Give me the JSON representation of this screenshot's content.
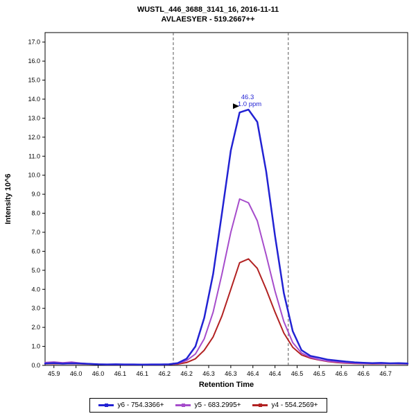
{
  "title": {
    "line1": "WUSTL_446_3688_3141_16, 2016-11-11",
    "line2": "AVLAESYER - 519.2667++"
  },
  "axes": {
    "x_label": "Retention Time",
    "y_label": "Intensity 10^6",
    "x_ticks": {
      "values": [
        45.9,
        45.95,
        46.0,
        46.05,
        46.1,
        46.15,
        46.2,
        46.25,
        46.3,
        46.35,
        46.4,
        46.45,
        46.5,
        46.55,
        46.6,
        46.65
      ],
      "labels": [
        "45.9",
        "46.0",
        "46.0",
        "46.1",
        "46.1",
        "46.2",
        "46.2",
        "46.3",
        "46.3",
        "46.4",
        "46.4",
        "46.5",
        "46.5",
        "46.6",
        "46.6",
        "46.7"
      ]
    },
    "y_ticks": {
      "values": [
        0,
        1,
        2,
        3,
        4,
        5,
        6,
        7,
        8,
        9,
        10,
        11,
        12,
        13,
        14,
        15,
        16,
        17
      ],
      "labels": [
        "0.0",
        "1.0",
        "2.0",
        "3.0",
        "4.0",
        "5.0",
        "6.0",
        "7.0",
        "8.0",
        "9.0",
        "10.0",
        "11.0",
        "12.0",
        "13.0",
        "14.0",
        "15.0",
        "16.0",
        "17.0"
      ]
    }
  },
  "chart_data": {
    "type": "line",
    "title": "WUSTL_446_3688_3141_16, 2016-11-11 / AVLAESYER - 519.2667++",
    "xlabel": "Retention Time",
    "ylabel": "Intensity 10^6",
    "xlim": [
      45.88,
      46.7
    ],
    "ylim": [
      0,
      17.5
    ],
    "grid": false,
    "legend_position": "bottom",
    "x": [
      45.88,
      45.9,
      45.92,
      45.94,
      45.96,
      45.98,
      46.0,
      46.02,
      46.04,
      46.06,
      46.08,
      46.1,
      46.12,
      46.14,
      46.16,
      46.18,
      46.2,
      46.22,
      46.24,
      46.26,
      46.28,
      46.3,
      46.32,
      46.34,
      46.36,
      46.38,
      46.4,
      46.42,
      46.44,
      46.46,
      46.48,
      46.5,
      46.52,
      46.54,
      46.56,
      46.58,
      46.6,
      46.62,
      46.64,
      46.66,
      46.68,
      46.7
    ],
    "series": [
      {
        "id": "y6",
        "name": "y6 - 754.3366+",
        "color": "#2222D3",
        "values": [
          0.1,
          0.12,
          0.09,
          0.11,
          0.1,
          0.08,
          0.06,
          0.05,
          0.06,
          0.05,
          0.05,
          0.04,
          0.05,
          0.05,
          0.06,
          0.12,
          0.35,
          1.0,
          2.5,
          4.8,
          8.0,
          11.3,
          13.3,
          13.45,
          12.8,
          10.2,
          6.8,
          3.8,
          1.8,
          0.8,
          0.5,
          0.4,
          0.3,
          0.25,
          0.2,
          0.16,
          0.14,
          0.12,
          0.13,
          0.11,
          0.12,
          0.1
        ]
      },
      {
        "id": "y5",
        "name": "y5 - 683.2995+",
        "color": "#A64CCB",
        "values": [
          0.15,
          0.18,
          0.14,
          0.17,
          0.12,
          0.08,
          0.06,
          0.05,
          0.05,
          0.04,
          0.05,
          0.04,
          0.05,
          0.04,
          0.05,
          0.1,
          0.25,
          0.6,
          1.4,
          2.8,
          4.8,
          7.0,
          8.75,
          8.55,
          7.6,
          5.8,
          3.9,
          2.3,
          1.2,
          0.65,
          0.42,
          0.3,
          0.22,
          0.18,
          0.14,
          0.12,
          0.1,
          0.1,
          0.09,
          0.1,
          0.09,
          0.08
        ]
      },
      {
        "id": "y4",
        "name": "y4 - 554.2569+",
        "color": "#B22222",
        "values": [
          0.08,
          0.09,
          0.08,
          0.09,
          0.08,
          0.07,
          0.06,
          0.05,
          0.05,
          0.05,
          0.04,
          0.05,
          0.04,
          0.05,
          0.05,
          0.07,
          0.15,
          0.35,
          0.8,
          1.5,
          2.6,
          4.0,
          5.4,
          5.6,
          5.1,
          4.0,
          2.8,
          1.7,
          0.95,
          0.55,
          0.38,
          0.28,
          0.2,
          0.15,
          0.12,
          0.1,
          0.09,
          0.08,
          0.08,
          0.09,
          0.08,
          0.08
        ]
      }
    ],
    "boundaries": [
      46.17,
      46.43
    ],
    "annotation": {
      "label": "46.3",
      "sublabel": "1.0 ppm",
      "x": 46.33,
      "y": 13.45,
      "color": "#2222D3"
    }
  }
}
